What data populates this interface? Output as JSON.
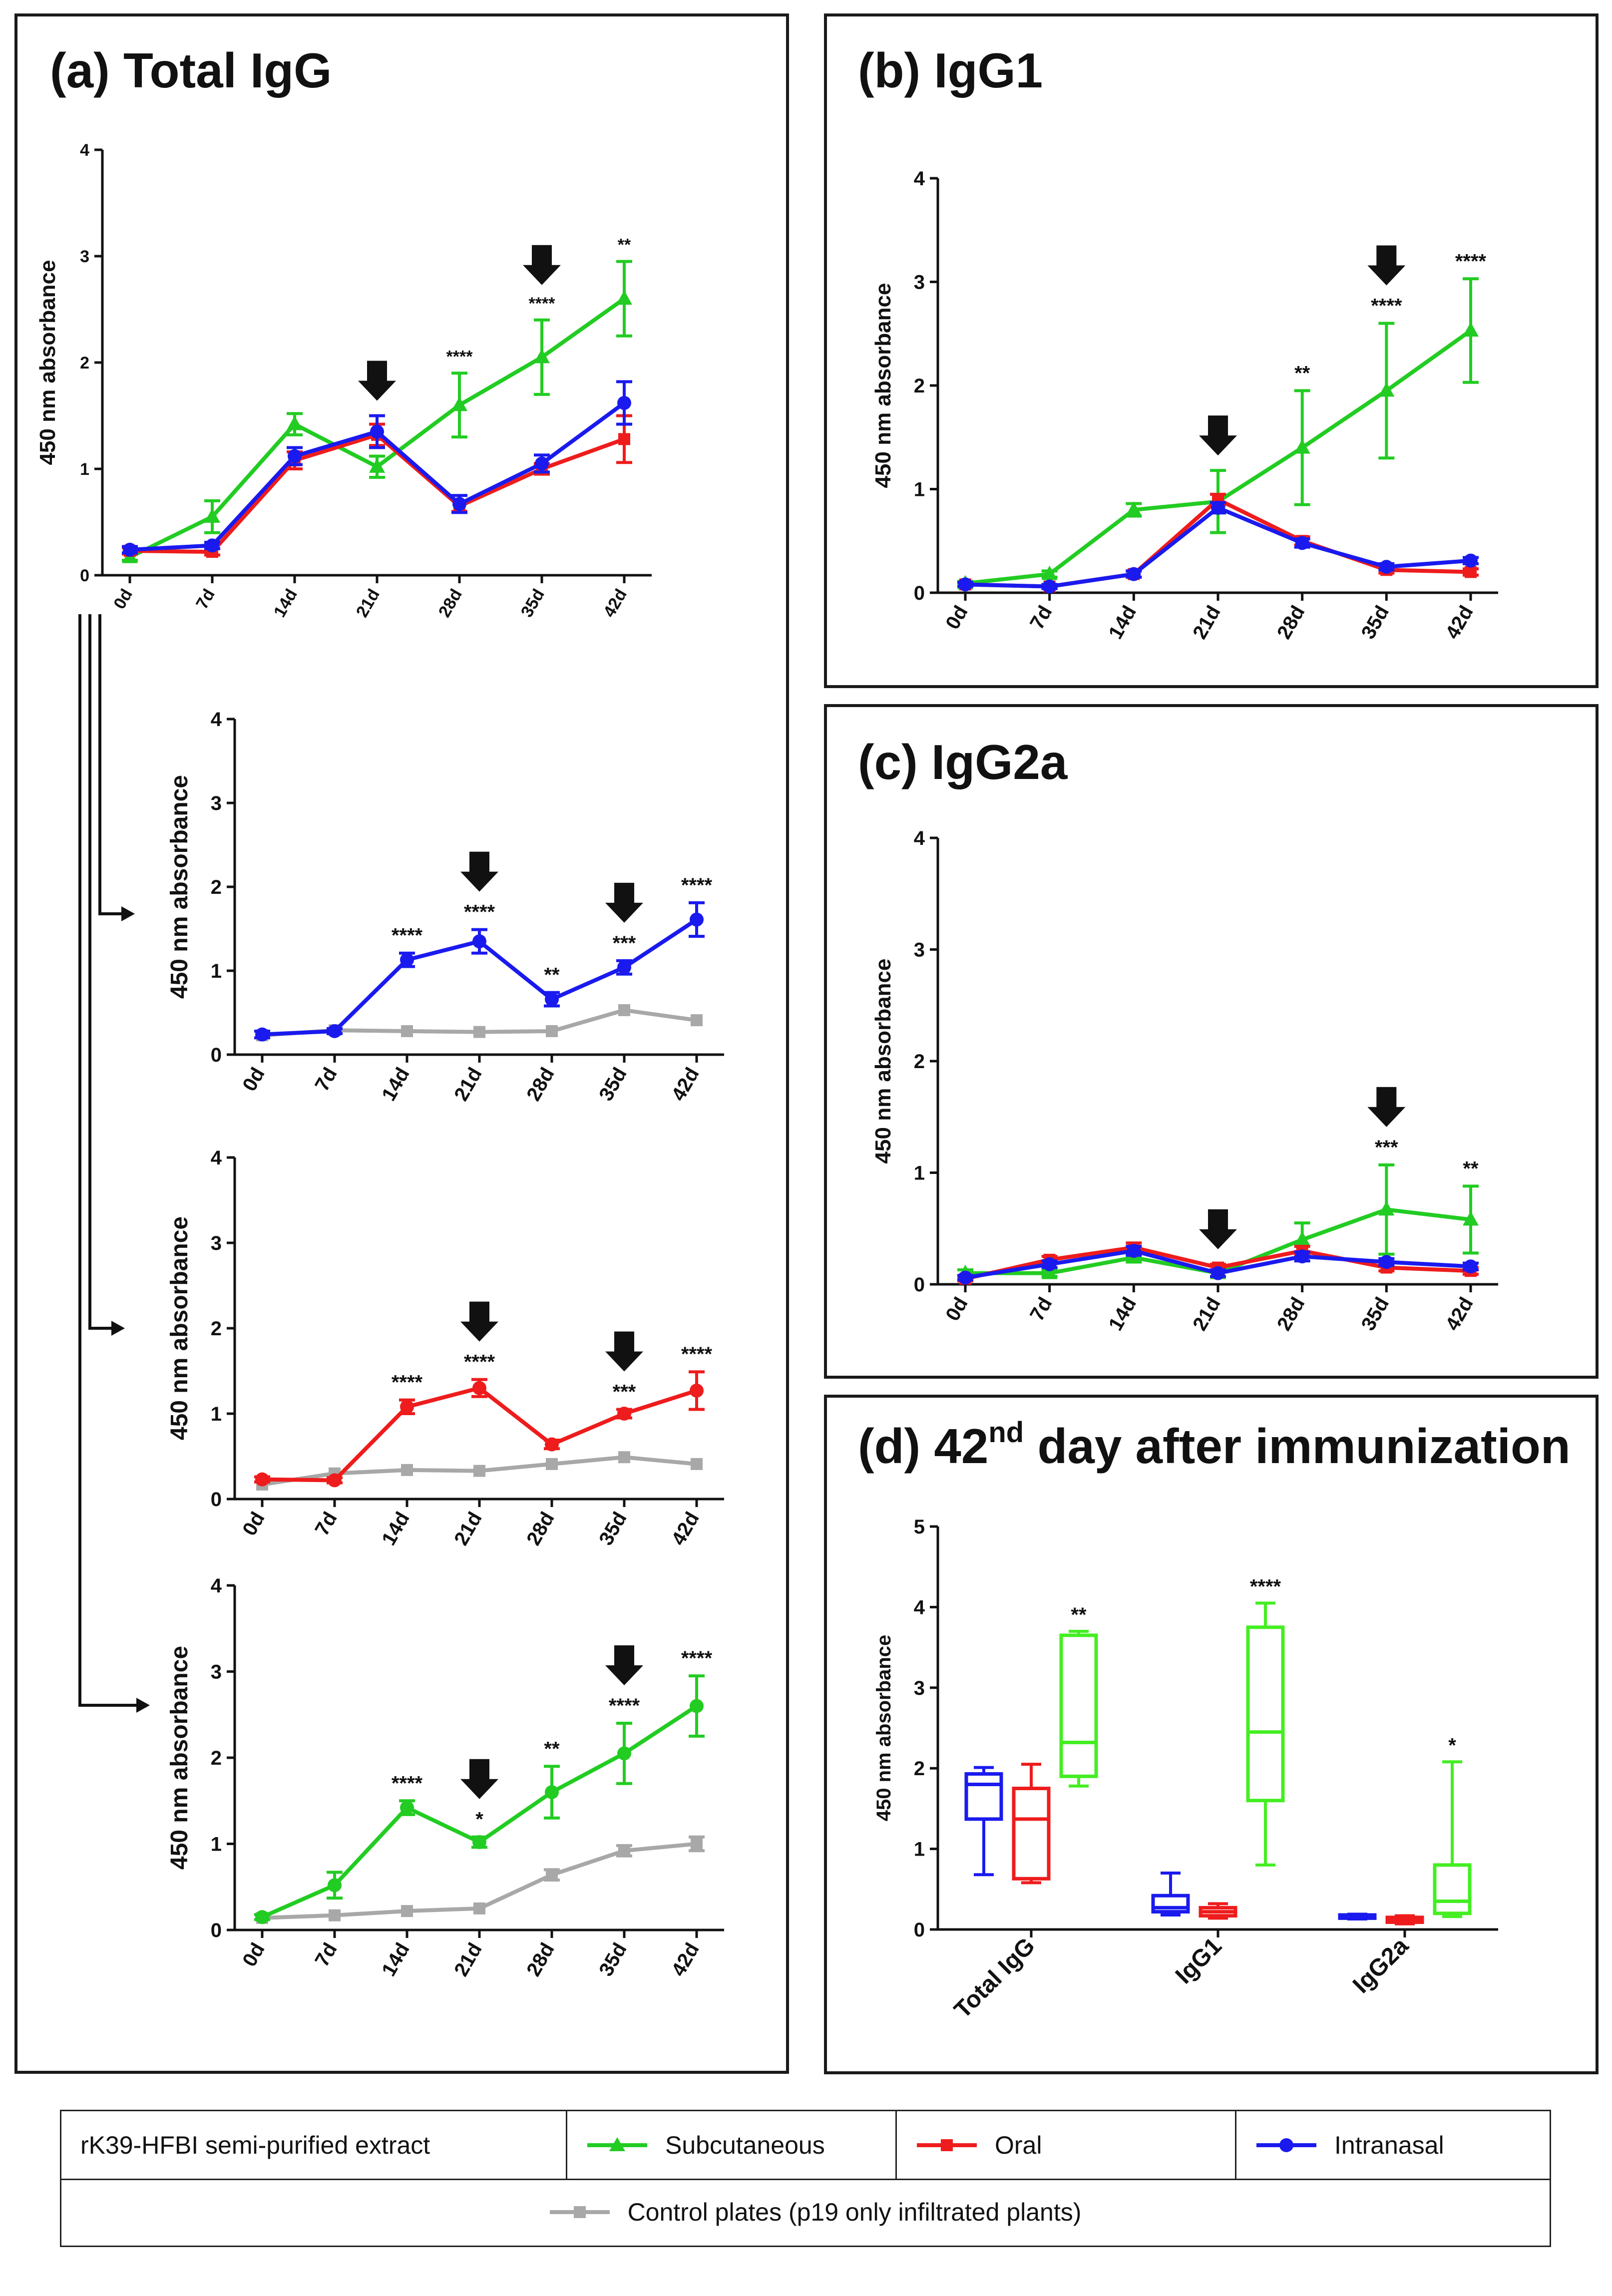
{
  "panels": {
    "a": {
      "title": "(a) Total IgG"
    },
    "b": {
      "title": "(b) IgG1"
    },
    "c": {
      "title": "(c) IgG2a"
    },
    "d": {
      "title_main": "(d) 42",
      "title_sup": "nd",
      "title_rest": " day after immunization"
    }
  },
  "colors": {
    "subcutaneous": "#22cc22",
    "oral": "#ee1c1c",
    "intranasal": "#1a1aee",
    "control": "#a8a8a8",
    "box_green": "#44ee22"
  },
  "legend": {
    "extract_label": "rK39-HFBI semi-purified extract",
    "subcutaneous": "Subcutaneous",
    "oral": "Oral",
    "intranasal": "Intranasal",
    "control": "Control plates (p19 only infiltrated plants)"
  },
  "chart_data": [
    {
      "id": "a",
      "type": "line",
      "title": "(a) Total IgG",
      "ylabel": "450 nm absorbance",
      "categories": [
        "0d",
        "7d",
        "14d",
        "21d",
        "28d",
        "35d",
        "42d"
      ],
      "ylim": [
        0,
        4
      ],
      "yticks": [
        0,
        1,
        2,
        3,
        4
      ],
      "series": [
        {
          "name": "Subcutaneous",
          "color": "subcutaneous",
          "marker": "triangle",
          "values": [
            0.17,
            0.55,
            1.42,
            1.02,
            1.6,
            2.05,
            2.6
          ],
          "err": [
            0.03,
            0.15,
            0.1,
            0.1,
            0.3,
            0.35,
            0.35
          ]
        },
        {
          "name": "Oral",
          "color": "oral",
          "marker": "square",
          "values": [
            0.23,
            0.22,
            1.08,
            1.32,
            0.65,
            1.0,
            1.28
          ],
          "err": [
            0.03,
            0.03,
            0.08,
            0.1,
            0.05,
            0.05,
            0.22
          ]
        },
        {
          "name": "Intranasal",
          "color": "intranasal",
          "marker": "circle",
          "values": [
            0.24,
            0.28,
            1.12,
            1.35,
            0.67,
            1.05,
            1.62
          ],
          "err": [
            0.03,
            0.03,
            0.08,
            0.15,
            0.08,
            0.08,
            0.2
          ]
        }
      ],
      "significance": [
        "",
        "",
        "",
        "",
        "****",
        "****",
        "**"
      ],
      "arrows": [
        3,
        5
      ]
    },
    {
      "id": "a1",
      "type": "line",
      "ylabel": "450 nm absorbance",
      "categories": [
        "0d",
        "7d",
        "14d",
        "21d",
        "28d",
        "35d",
        "42d"
      ],
      "ylim": [
        0,
        4
      ],
      "yticks": [
        0,
        1,
        2,
        3,
        4
      ],
      "series": [
        {
          "name": "Control plates (p19 only infiltrated plants)",
          "color": "control",
          "marker": "square",
          "values": [
            0.23,
            0.29,
            0.28,
            0.27,
            0.28,
            0.53,
            0.41
          ],
          "err": [
            0,
            0,
            0,
            0,
            0,
            0,
            0
          ]
        },
        {
          "name": "Intranasal",
          "color": "intranasal",
          "marker": "circle",
          "values": [
            0.24,
            0.28,
            1.13,
            1.35,
            0.66,
            1.04,
            1.61
          ],
          "err": [
            0.04,
            0.03,
            0.08,
            0.14,
            0.08,
            0.08,
            0.2
          ]
        }
      ],
      "significance": [
        "",
        "",
        "****",
        "****",
        "**",
        "***",
        "****"
      ],
      "arrows": [
        3,
        5
      ]
    },
    {
      "id": "a2",
      "type": "line",
      "ylabel": "450 nm absorbance",
      "categories": [
        "0d",
        "7d",
        "14d",
        "21d",
        "28d",
        "35d",
        "42d"
      ],
      "ylim": [
        0,
        4
      ],
      "yticks": [
        0,
        1,
        2,
        3,
        4
      ],
      "series": [
        {
          "name": "Control plates (p19 only infiltrated plants)",
          "color": "control",
          "marker": "square",
          "values": [
            0.17,
            0.3,
            0.34,
            0.33,
            0.41,
            0.49,
            0.41
          ],
          "err": [
            0,
            0,
            0,
            0,
            0,
            0,
            0
          ]
        },
        {
          "name": "Oral",
          "color": "oral",
          "marker": "circle",
          "values": [
            0.23,
            0.22,
            1.08,
            1.3,
            0.64,
            1.0,
            1.27
          ],
          "err": [
            0.03,
            0.03,
            0.08,
            0.1,
            0.05,
            0.05,
            0.22
          ]
        }
      ],
      "significance": [
        "",
        "",
        "****",
        "****",
        "",
        "***",
        "****"
      ],
      "arrows": [
        3,
        5
      ]
    },
    {
      "id": "a3",
      "type": "line",
      "ylabel": "450 nm absorbance",
      "categories": [
        "0d",
        "7d",
        "14d",
        "21d",
        "28d",
        "35d",
        "42d"
      ],
      "ylim": [
        0,
        4
      ],
      "yticks": [
        0,
        1,
        2,
        3,
        4
      ],
      "series": [
        {
          "name": "Control plates (p19 only infiltrated plants)",
          "color": "control",
          "marker": "square",
          "values": [
            0.14,
            0.17,
            0.22,
            0.25,
            0.64,
            0.92,
            1.0
          ],
          "err": [
            0,
            0,
            0,
            0,
            0.06,
            0.06,
            0.08
          ]
        },
        {
          "name": "Subcutaneous",
          "color": "subcutaneous",
          "marker": "circle",
          "values": [
            0.15,
            0.52,
            1.42,
            1.02,
            1.6,
            2.05,
            2.6
          ],
          "err": [
            0.03,
            0.15,
            0.08,
            0.06,
            0.3,
            0.35,
            0.35
          ]
        }
      ],
      "significance": [
        "",
        "",
        "****",
        "*",
        "**",
        "****",
        "****"
      ],
      "arrows": [
        3,
        5
      ]
    },
    {
      "id": "b",
      "type": "line",
      "title": "(b) IgG1",
      "ylabel": "450 nm absorbance",
      "categories": [
        "0d",
        "7d",
        "14d",
        "21d",
        "28d",
        "35d",
        "42d"
      ],
      "ylim": [
        0,
        4
      ],
      "yticks": [
        0,
        1,
        2,
        3,
        4
      ],
      "series": [
        {
          "name": "Subcutaneous",
          "color": "subcutaneous",
          "marker": "triangle",
          "values": [
            0.09,
            0.18,
            0.8,
            0.88,
            1.4,
            1.95,
            2.53
          ],
          "err": [
            0.02,
            0.03,
            0.06,
            0.3,
            0.55,
            0.65,
            0.5
          ]
        },
        {
          "name": "Oral",
          "color": "oral",
          "marker": "square",
          "values": [
            0.08,
            0.06,
            0.18,
            0.9,
            0.5,
            0.22,
            0.2
          ],
          "err": [
            0.02,
            0.02,
            0.03,
            0.05,
            0.04,
            0.03,
            0.03
          ]
        },
        {
          "name": "Intranasal",
          "color": "intranasal",
          "marker": "circle",
          "values": [
            0.08,
            0.06,
            0.18,
            0.82,
            0.48,
            0.25,
            0.31
          ],
          "err": [
            0.02,
            0.02,
            0.03,
            0.05,
            0.04,
            0.03,
            0.03
          ]
        }
      ],
      "significance": [
        "",
        "",
        "",
        "",
        "**",
        "****",
        "****"
      ],
      "arrows": [
        3,
        5
      ]
    },
    {
      "id": "c",
      "type": "line",
      "title": "(c) IgG2a",
      "ylabel": "450 nm absorbance",
      "categories": [
        "0d",
        "7d",
        "14d",
        "21d",
        "28d",
        "35d",
        "42d"
      ],
      "ylim": [
        0,
        4
      ],
      "yticks": [
        0,
        1,
        2,
        3,
        4
      ],
      "series": [
        {
          "name": "Subcutaneous",
          "color": "subcutaneous",
          "marker": "triangle",
          "values": [
            0.1,
            0.1,
            0.24,
            0.1,
            0.4,
            0.67,
            0.58
          ],
          "err": [
            0.03,
            0.03,
            0.04,
            0.03,
            0.15,
            0.4,
            0.3
          ]
        },
        {
          "name": "Oral",
          "color": "oral",
          "marker": "square",
          "values": [
            0.05,
            0.22,
            0.33,
            0.15,
            0.3,
            0.15,
            0.12
          ],
          "err": [
            0.02,
            0.03,
            0.04,
            0.03,
            0.04,
            0.03,
            0.03
          ]
        },
        {
          "name": "Intranasal",
          "color": "intranasal",
          "marker": "circle",
          "values": [
            0.06,
            0.18,
            0.3,
            0.1,
            0.25,
            0.2,
            0.16
          ],
          "err": [
            0.02,
            0.03,
            0.04,
            0.03,
            0.04,
            0.03,
            0.03
          ]
        }
      ],
      "significance": [
        "",
        "",
        "",
        "",
        "",
        "***",
        "**"
      ],
      "arrows": [
        3,
        5
      ]
    },
    {
      "id": "d",
      "type": "box",
      "title": "(d) 42nd day after immunization",
      "ylabel": "450 nm absorbance",
      "categories": [
        "Total IgG",
        "IgG1",
        "IgG2a"
      ],
      "ylim": [
        0,
        5
      ],
      "yticks": [
        0,
        1,
        2,
        3,
        4,
        5
      ],
      "boxes": [
        {
          "group": "Total IgG",
          "color": "intranasal",
          "min": 0.68,
          "q1": 1.37,
          "median": 1.8,
          "q3": 1.93,
          "max": 2.01,
          "sig": ""
        },
        {
          "group": "Total IgG",
          "color": "oral",
          "min": 0.58,
          "q1": 0.63,
          "median": 1.37,
          "q3": 1.75,
          "max": 2.05,
          "sig": ""
        },
        {
          "group": "Total IgG",
          "color": "box_green",
          "min": 1.78,
          "q1": 1.9,
          "median": 2.32,
          "q3": 3.65,
          "max": 3.7,
          "sig": "**"
        },
        {
          "group": "IgG1",
          "color": "intranasal",
          "min": 0.18,
          "q1": 0.22,
          "median": 0.27,
          "q3": 0.42,
          "max": 0.7,
          "sig": ""
        },
        {
          "group": "IgG1",
          "color": "oral",
          "min": 0.14,
          "q1": 0.17,
          "median": 0.22,
          "q3": 0.27,
          "max": 0.32,
          "sig": ""
        },
        {
          "group": "IgG1",
          "color": "box_green",
          "min": 0.8,
          "q1": 1.6,
          "median": 2.45,
          "q3": 3.75,
          "max": 4.05,
          "sig": "****"
        },
        {
          "group": "IgG2a",
          "color": "intranasal",
          "min": 0.13,
          "q1": 0.14,
          "median": 0.16,
          "q3": 0.18,
          "max": 0.19,
          "sig": ""
        },
        {
          "group": "IgG2a",
          "color": "oral",
          "min": 0.07,
          "q1": 0.09,
          "median": 0.12,
          "q3": 0.15,
          "max": 0.17,
          "sig": ""
        },
        {
          "group": "IgG2a",
          "color": "box_green",
          "min": 0.16,
          "q1": 0.2,
          "median": 0.35,
          "q3": 0.8,
          "max": 2.08,
          "sig": "*"
        }
      ]
    }
  ]
}
